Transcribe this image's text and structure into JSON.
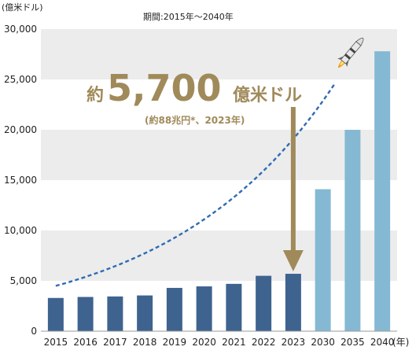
{
  "chart_data": {
    "type": "bar",
    "title": "期間:2015年～2040年",
    "ylabel": "(億米ドル)",
    "xunit": "(年)",
    "categories": [
      "2015",
      "2016",
      "2017",
      "2018",
      "2019",
      "2020",
      "2021",
      "2022",
      "2023",
      "2030",
      "2035",
      "2040"
    ],
    "values": [
      3300,
      3400,
      3450,
      3550,
      4300,
      4450,
      4700,
      5500,
      5700,
      14100,
      20000,
      27800
    ],
    "bar_colors": [
      "#3e638f",
      "#3e638f",
      "#3e638f",
      "#3e638f",
      "#3e638f",
      "#3e638f",
      "#3e638f",
      "#3e638f",
      "#3e638f",
      "#85b9d3",
      "#85b9d3",
      "#85b9d3"
    ],
    "ylim": [
      0,
      30000
    ],
    "yticks": [
      0,
      5000,
      10000,
      15000,
      20000,
      25000,
      30000
    ],
    "ytick_labels": [
      "0",
      "5,000",
      "10,000",
      "15,000",
      "20,000",
      "25,000",
      "30,000"
    ],
    "trend_line": {
      "style": "dashed",
      "color": "#2f6bb3",
      "start": 4500,
      "end": 24500
    },
    "callout": {
      "prefix": "約",
      "value": "5,700",
      "unit": "億米ドル",
      "sub": "(約88兆円*、2023年)",
      "color": "#a08a5a",
      "points_to": "2023"
    },
    "grid_bands": "alternating light gray",
    "decoration": "rocket-icon"
  }
}
